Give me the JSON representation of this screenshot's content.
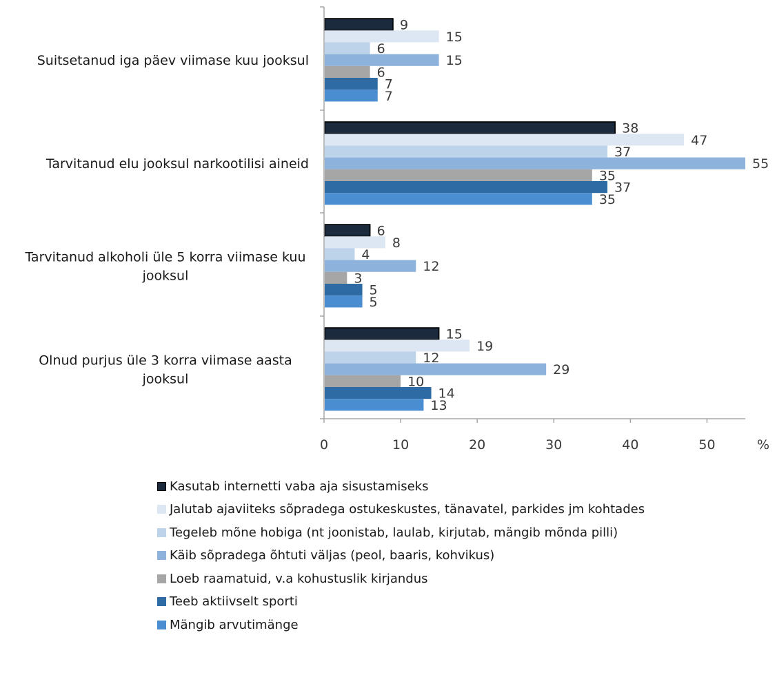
{
  "chart_data": {
    "type": "bar",
    "orientation": "horizontal",
    "categories": [
      "Suitsetanud iga päev viimase kuu jooksul",
      "Tarvitanud elu jooksul narkootilisi aineid",
      "Tarvitanud alkoholi üle 5 korra viimase kuu jooksul",
      "Olnud purjus üle 3 korra viimase aasta jooksul"
    ],
    "category_lines": [
      [
        "Suitsetanud iga päev viimase kuu jooksul"
      ],
      [
        "Tarvitanud elu jooksul narkootilisi aineid"
      ],
      [
        "Tarvitanud alkoholi üle 5 korra viimase kuu",
        "jooksul"
      ],
      [
        "Olnud purjus üle 3 korra viimase aasta",
        "jooksul"
      ]
    ],
    "series": [
      {
        "name": "Kasutab internetti vaba aja sisustamiseks",
        "color": "#1b2a3d",
        "values": [
          9,
          38,
          6,
          15
        ]
      },
      {
        "name": "Jalutab ajaviiteks sõpradega ostukeskustes, tänavatel, parkides jm kohtades",
        "color": "#dce7f3",
        "values": [
          15,
          47,
          8,
          19
        ]
      },
      {
        "name": "Tegeleb mõne hobiga (nt joonistab, laulab, kirjutab, mängib mõnda pilli)",
        "color": "#bcd3ea",
        "values": [
          6,
          37,
          4,
          12
        ]
      },
      {
        "name": "Käib sõpradega õhtuti väljas (peol, baaris, kohvikus)",
        "color": "#8db3dc",
        "values": [
          15,
          55,
          12,
          29
        ]
      },
      {
        "name": "Loeb raamatuid, v.a kohustuslik kirjandus",
        "color": "#a6a6a6",
        "values": [
          6,
          35,
          3,
          10
        ]
      },
      {
        "name": "Teeb aktiivselt sporti",
        "color": "#2e6aa3",
        "values": [
          7,
          37,
          5,
          14
        ]
      },
      {
        "name": "Mängib arvutimänge",
        "color": "#4a8dd0",
        "values": [
          7,
          35,
          5,
          13
        ]
      }
    ],
    "xlim": [
      0,
      55
    ],
    "xticks": [
      0,
      10,
      20,
      30,
      40,
      50
    ],
    "xtick_labels": [
      "0",
      "10",
      "20",
      "30",
      "40",
      "50"
    ],
    "x_unit": "%",
    "grid": false,
    "legend_position": "bottom"
  }
}
